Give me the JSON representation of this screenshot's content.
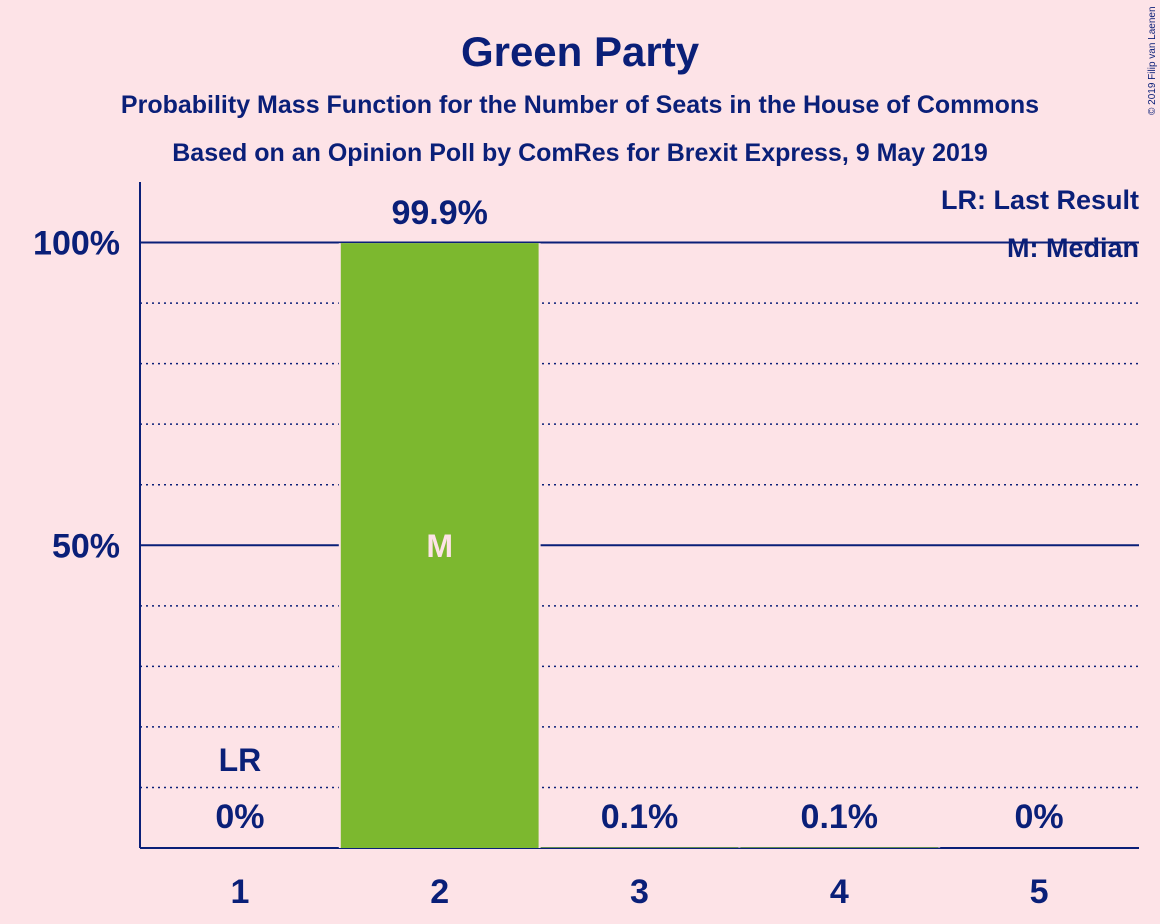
{
  "chart_data": {
    "type": "bar",
    "title": "Green Party",
    "subtitle_lines": [
      "Probability Mass Function for the Number of Seats in the House of Commons",
      "Based on an Opinion Poll by ComRes for Brexit Express, 9 May 2019"
    ],
    "copyright": "© 2019 Filip van Laenen",
    "categories": [
      "1",
      "2",
      "3",
      "4",
      "5"
    ],
    "values": [
      0,
      99.9,
      0.1,
      0.1,
      0
    ],
    "value_labels": [
      "0%",
      "99.9%",
      "0.1%",
      "0.1%",
      "0%"
    ],
    "ylim": [
      0,
      110
    ],
    "yticks": [
      {
        "value": 50,
        "label": "50%"
      },
      {
        "value": 100,
        "label": "100%"
      }
    ],
    "minor_grid_step": 10,
    "last_result": {
      "category": "1",
      "label": "LR"
    },
    "median": {
      "category": "2",
      "label": "M"
    },
    "legend": [
      "LR: Last Result",
      "M: Median"
    ],
    "legend_position": "top-right",
    "colors": {
      "bar": "#7cb82f",
      "text": "#0a1f78",
      "background": "#fde3e7"
    }
  }
}
